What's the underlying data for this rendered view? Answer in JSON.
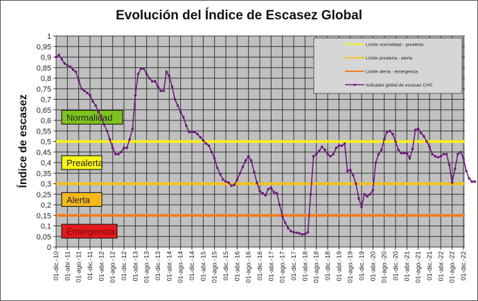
{
  "chart_data": {
    "type": "line",
    "title": "Evolución del Índice de Escasez Global",
    "xlabel": "",
    "ylabel": "Índice de escasez",
    "ylim": [
      0,
      1
    ],
    "grid": true,
    "legend_position": "top-right",
    "yticks": [
      "0",
      "0,05",
      "0,1",
      "0,15",
      "0,2",
      "0,25",
      "0,3",
      "0,35",
      "0,4",
      "0,45",
      "0,5",
      "0,55",
      "0,6",
      "0,65",
      "0,7",
      "0,75",
      "0,8",
      "0,85",
      "0,9",
      "0,95",
      "1"
    ],
    "xtick_labels": [
      "01-dic.-10",
      "01-abr.-11",
      "01-ago.-11",
      "01-dic.-11",
      "01-abr.-12",
      "01-ago.-12",
      "01-dic.-12",
      "01-abr.-13",
      "01-ago.-13",
      "01-dic.-13",
      "01-abr.-14",
      "01-ago.-14",
      "01-dic.-14",
      "01-abr.-15",
      "01-ago.-15",
      "01-dic.-15",
      "01-abr.-16",
      "01-ago.-16",
      "01-dic.-16",
      "01-abr.-17",
      "01-ago.-17",
      "01-dic.-17",
      "01-abr.-18",
      "01-ago.-18",
      "01-dic.-18",
      "01-abr.-19",
      "01-ago.-19",
      "01-dic.-19",
      "01-abr.-20",
      "01-ago.-20",
      "01-dic.-20",
      "01-abr.-21",
      "01-ago.-21",
      "01-dic.-21",
      "01-abr.-22",
      "01-ago.-22",
      "01-dic.-22"
    ],
    "thresholds": [
      {
        "name": "Límite normalidad - prealerta",
        "value": 0.5,
        "color": "#f5f021"
      },
      {
        "name": "Límite prealerta - alerta",
        "value": 0.3,
        "color": "#f2c21c"
      },
      {
        "name": "Límite alerta - emergencia",
        "value": 0.15,
        "color": "#ef7d22"
      }
    ],
    "zones": [
      {
        "label": "Normalidad",
        "color": "#7dc31e",
        "y_value": 0.615
      },
      {
        "label": "Prealerta",
        "color": "#f8f51a",
        "y_value": 0.4
      },
      {
        "label": "Alerta",
        "color": "#f5b81c",
        "y_value": 0.225
      },
      {
        "label": "Emergencia",
        "color": "#e5181b",
        "y_value": 0.075
      }
    ],
    "series": [
      {
        "name": "Indicador global de escasez CHS",
        "color": "#6b1a7a",
        "start": "dic-2010",
        "frequency": "monthly",
        "values": [
          0.9,
          0.91,
          0.89,
          0.87,
          0.86,
          0.855,
          0.84,
          0.83,
          0.79,
          0.75,
          0.74,
          0.73,
          0.72,
          0.69,
          0.67,
          0.64,
          0.61,
          0.58,
          0.55,
          0.51,
          0.47,
          0.44,
          0.44,
          0.45,
          0.47,
          0.47,
          0.51,
          0.56,
          0.72,
          0.82,
          0.845,
          0.845,
          0.82,
          0.8,
          0.785,
          0.785,
          0.76,
          0.74,
          0.74,
          0.83,
          0.81,
          0.76,
          0.7,
          0.67,
          0.64,
          0.615,
          0.575,
          0.545,
          0.545,
          0.545,
          0.535,
          0.52,
          0.505,
          0.49,
          0.48,
          0.45,
          0.42,
          0.375,
          0.345,
          0.32,
          0.31,
          0.305,
          0.29,
          0.295,
          0.32,
          0.35,
          0.38,
          0.41,
          0.43,
          0.41,
          0.355,
          0.305,
          0.265,
          0.255,
          0.245,
          0.275,
          0.28,
          0.26,
          0.255,
          0.2,
          0.145,
          0.115,
          0.09,
          0.075,
          0.07,
          0.068,
          0.065,
          0.06,
          0.062,
          0.07,
          0.25,
          0.43,
          0.44,
          0.455,
          0.475,
          0.46,
          0.44,
          0.43,
          0.44,
          0.47,
          0.48,
          0.48,
          0.49,
          0.36,
          0.365,
          0.34,
          0.3,
          0.23,
          0.19,
          0.25,
          0.24,
          0.25,
          0.27,
          0.4,
          0.44,
          0.46,
          0.51,
          0.545,
          0.55,
          0.535,
          0.5,
          0.46,
          0.445,
          0.445,
          0.445,
          0.42,
          0.465,
          0.555,
          0.56,
          0.54,
          0.525,
          0.5,
          0.475,
          0.44,
          0.43,
          0.425,
          0.43,
          0.44,
          0.44,
          0.39,
          0.305,
          0.37,
          0.44,
          0.45,
          0.42,
          0.36,
          0.325,
          0.31,
          0.31
        ]
      }
    ]
  }
}
